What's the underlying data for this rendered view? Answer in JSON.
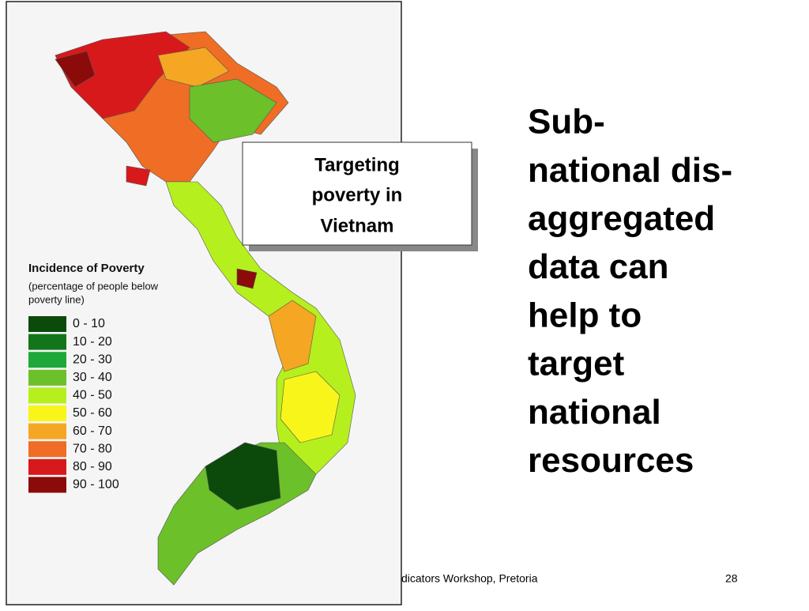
{
  "map": {
    "legend": {
      "title": "Incidence of Poverty",
      "subtitle_lines": [
        "(percentage of people below",
        "poverty line)"
      ],
      "items": [
        {
          "label": "0 - 10",
          "color": "#0b4a0b"
        },
        {
          "label": "10 - 20",
          "color": "#13751a"
        },
        {
          "label": "20 - 30",
          "color": "#1fa83a"
        },
        {
          "label": "30 - 40",
          "color": "#6cc02a"
        },
        {
          "label": "40 - 50",
          "color": "#b5f01e"
        },
        {
          "label": "50 - 60",
          "color": "#f8f51a"
        },
        {
          "label": "60 - 70",
          "color": "#f5a623"
        },
        {
          "label": "70 - 80",
          "color": "#ef6d24"
        },
        {
          "label": "80 - 90",
          "color": "#d7191c"
        },
        {
          "label": "90 - 100",
          "color": "#8b0a0a"
        }
      ]
    }
  },
  "callout": {
    "lines": [
      "Targeting",
      "poverty in",
      "Vietnam"
    ]
  },
  "body": {
    "lines": [
      "Sub-",
      "national dis-",
      "aggregated",
      "data can",
      "help to",
      "target",
      "national",
      "resources"
    ]
  },
  "footer": {
    "text": "dicators Workshop, Pretoria",
    "page_number": "28"
  }
}
